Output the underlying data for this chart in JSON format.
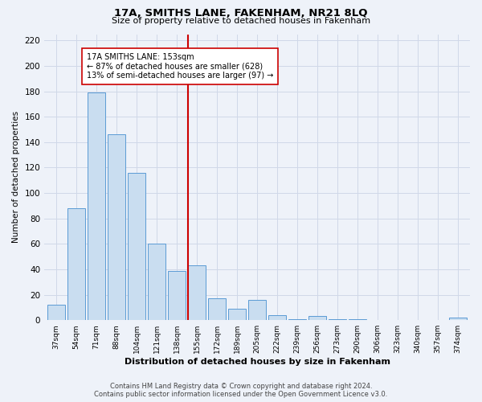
{
  "title": "17A, SMITHS LANE, FAKENHAM, NR21 8LQ",
  "subtitle": "Size of property relative to detached houses in Fakenham",
  "xlabel": "Distribution of detached houses by size in Fakenham",
  "ylabel": "Number of detached properties",
  "bin_labels": [
    "37sqm",
    "54sqm",
    "71sqm",
    "88sqm",
    "104sqm",
    "121sqm",
    "138sqm",
    "155sqm",
    "172sqm",
    "189sqm",
    "205sqm",
    "222sqm",
    "239sqm",
    "256sqm",
    "273sqm",
    "290sqm",
    "306sqm",
    "323sqm",
    "340sqm",
    "357sqm",
    "374sqm"
  ],
  "bar_values": [
    12,
    88,
    179,
    146,
    116,
    60,
    39,
    43,
    17,
    9,
    16,
    4,
    1,
    3,
    1,
    1,
    0,
    0,
    0,
    0,
    2
  ],
  "bar_color_face": "#c9ddf0",
  "bar_color_edge": "#5b9bd5",
  "grid_color": "#d0d8e8",
  "background_color": "#eef2f9",
  "vline_color": "#cc0000",
  "ylim": [
    0,
    225
  ],
  "yticks": [
    0,
    20,
    40,
    60,
    80,
    100,
    120,
    140,
    160,
    180,
    200,
    220
  ],
  "annotation_title": "17A SMITHS LANE: 153sqm",
  "annotation_line1": "← 87% of detached houses are smaller (628)",
  "annotation_line2": "13% of semi-detached houses are larger (97) →",
  "footer_line1": "Contains HM Land Registry data © Crown copyright and database right 2024.",
  "footer_line2": "Contains public sector information licensed under the Open Government Licence v3.0."
}
